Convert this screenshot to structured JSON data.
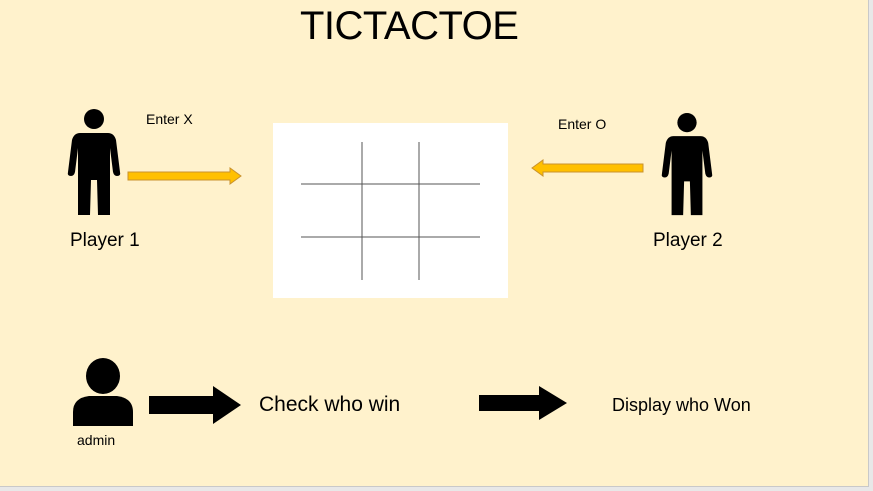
{
  "title": "TICTACTOE",
  "player1": {
    "label": "Player 1",
    "instruction": "Enter X"
  },
  "player2": {
    "label": "Player 2",
    "instruction": "Enter O"
  },
  "admin": {
    "label": "admin"
  },
  "steps": {
    "check": "Check who win",
    "display": "Display who Won"
  },
  "colors": {
    "background": "#fff2cc",
    "arrow_gold": "#ffc000",
    "arrow_gold_border": "#c9922e",
    "black": "#000000",
    "board": "#ffffff",
    "grid_line": "#555555"
  },
  "icons": [
    "person-icon",
    "user-icon",
    "arrow-right-icon",
    "arrow-left-icon"
  ]
}
